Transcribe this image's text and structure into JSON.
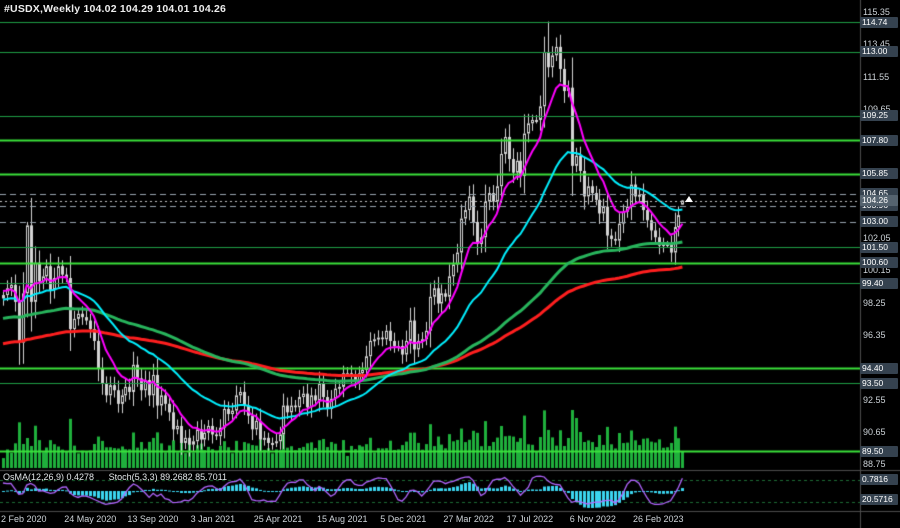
{
  "header": {
    "title_line": "#USDX,Weekly 104.02 104.29 104.01 104.26"
  },
  "indicators": {
    "osma_label": "OsMA(12,26,9) 0.4278",
    "stoch_label": "Stoch(5,3,3) 89.2682 85.7011",
    "panel_tags": [
      "0.7816",
      "20.5716"
    ]
  },
  "chart_data": {
    "type": "candlestick",
    "symbol": "#USDX",
    "timeframe": "Weekly",
    "ohlc": {
      "open": 104.02,
      "high": 104.29,
      "low": 104.01,
      "close": 104.26
    },
    "x_axis": {
      "labels": [
        {
          "text": "2 Feb 2020",
          "week": 0
        },
        {
          "text": "24 May 2020",
          "week": 16
        },
        {
          "text": "13 Sep 2020",
          "week": 32
        },
        {
          "text": "3 Jan 2021",
          "week": 48
        },
        {
          "text": "25 Apr 2021",
          "week": 64
        },
        {
          "text": "15 Aug 2021",
          "week": 80
        },
        {
          "text": "5 Dec 2021",
          "week": 96
        },
        {
          "text": "27 Mar 2022",
          "week": 112
        },
        {
          "text": "17 Jul 2022",
          "week": 128
        },
        {
          "text": "6 Nov 2022",
          "week": 144
        },
        {
          "text": "26 Feb 2023",
          "week": 160
        }
      ]
    },
    "y_axis": {
      "scale_labels": [
        {
          "text": "115.35",
          "price": 115.35
        },
        {
          "text": "113.45",
          "price": 113.45
        },
        {
          "text": "111.55",
          "price": 111.55
        },
        {
          "text": "109.65",
          "price": 109.65
        },
        {
          "text": "107.75",
          "price": 107.75
        },
        {
          "text": "105.85",
          "price": 105.85
        },
        {
          "text": "103.95",
          "price": 103.95
        },
        {
          "text": "102.05",
          "price": 102.05
        },
        {
          "text": "100.15",
          "price": 100.15
        },
        {
          "text": "98.25",
          "price": 98.25
        },
        {
          "text": "96.35",
          "price": 96.35
        },
        {
          "text": "94.45",
          "price": 94.45
        },
        {
          "text": "92.55",
          "price": 92.55
        },
        {
          "text": "90.65",
          "price": 90.65
        },
        {
          "text": "88.75",
          "price": 88.75
        }
      ]
    },
    "candles": {
      "first_open": 98.5,
      "closes": [
        98.7,
        99.1,
        99.3,
        98.3,
        95.9,
        98.8,
        102.8,
        98.3,
        100.6,
        99.5,
        99.8,
        100.4,
        99.0,
        99.7,
        100.4,
        99.9,
        99.7,
        96.7,
        97.3,
        97.6,
        97.4,
        97.2,
        96.7,
        96.0,
        94.4,
        93.5,
        92.8,
        93.4,
        93.1,
        92.3,
        92.8,
        93.3,
        93.0,
        94.6,
        93.8,
        93.1,
        93.7,
        92.8,
        94.0,
        92.2,
        92.8,
        92.3,
        91.8,
        90.8,
        91.0,
        90.0,
        90.3,
        89.9,
        90.1,
        90.8,
        90.2,
        90.6,
        91.0,
        90.5,
        90.4,
        90.9,
        92.0,
        91.7,
        91.9,
        92.8,
        93.0,
        92.2,
        91.6,
        90.8,
        91.3,
        90.2,
        90.3,
        90.0,
        90.0,
        90.1,
        90.5,
        92.2,
        91.8,
        92.2,
        92.1,
        92.7,
        92.9,
        92.1,
        92.8,
        92.5,
        93.5,
        92.7,
        92.0,
        92.6,
        93.2,
        93.3,
        94.1,
        94.1,
        93.9,
        93.6,
        94.1,
        94.3,
        95.1,
        96.0,
        96.1,
        96.2,
        96.1,
        96.6,
        96.0,
        95.7,
        95.7,
        95.2,
        96.0,
        97.2,
        95.5,
        96.0,
        96.1,
        96.6,
        98.6,
        99.1,
        98.2,
        98.8,
        98.6,
        99.8,
        100.5,
        101.2,
        103.2,
        103.7,
        104.5,
        103.0,
        101.7,
        102.1,
        104.2,
        104.7,
        104.2,
        105.1,
        107.0,
        108.0,
        106.7,
        105.9,
        106.6,
        105.7,
        108.2,
        108.8,
        109.0,
        109.0,
        109.8,
        113.0,
        112.1,
        112.8,
        113.3,
        112.0,
        110.7,
        110.9,
        106.3,
        106.9,
        106.0,
        104.5,
        105.1,
        104.7,
        104.3,
        103.5,
        103.9,
        102.2,
        102.0,
        101.9,
        102.9,
        103.6,
        103.9,
        105.2,
        104.5,
        104.6,
        103.7,
        103.1,
        102.5,
        102.1,
        101.6,
        101.7,
        101.7,
        101.2,
        102.7,
        103.4,
        104.26
      ],
      "wick": {
        "base": 0.18,
        "body_mult": 0.3,
        "wave": 0.22
      },
      "overrides": [
        {
          "i": 4,
          "l": 94.6
        },
        {
          "i": 6,
          "h": 103.0
        },
        {
          "i": 47,
          "l": 89.2
        },
        {
          "i": 67,
          "l": 89.5
        },
        {
          "i": 137,
          "h": 113.9
        },
        {
          "i": 138,
          "h": 114.79
        },
        {
          "i": 172,
          "o": 104.02,
          "h": 104.29,
          "l": 104.01
        }
      ]
    },
    "moving_averages": [
      {
        "name": "ma-slowest",
        "period": 150,
        "seed": 95.8,
        "color": "#ff1f1f",
        "width": 3
      },
      {
        "name": "ma-slow",
        "period": 100,
        "seed": 97.3,
        "color": "#28b45c",
        "width": 3
      },
      {
        "name": "ma-medium",
        "period": 30,
        "seed": 98.4,
        "color": "#00f0ff",
        "width": 2
      },
      {
        "name": "ma-fast",
        "period": 9,
        "seed": 99.0,
        "color": "#ff00ff",
        "width": 2
      }
    ],
    "horizontal_levels": [
      {
        "price": 114.74,
        "tag": "114.74",
        "style": "solid",
        "width": 1,
        "color": "#1e9e46"
      },
      {
        "price": 113.0,
        "tag": "113.00",
        "style": "solid",
        "width": 1,
        "color": "#1e9e46"
      },
      {
        "price": 109.25,
        "tag": "109.25",
        "style": "solid",
        "width": 1,
        "color": "#1e9e46"
      },
      {
        "price": 107.8,
        "tag": "107.80",
        "style": "solid",
        "width": 2,
        "color": "#3be13b"
      },
      {
        "price": 105.85,
        "tag": "105.85",
        "style": "solid",
        "width": 2,
        "color": "#3be13b"
      },
      {
        "price": 104.65,
        "tag": "104.65",
        "style": "dash",
        "width": 1,
        "color": "#9aa6b0"
      },
      {
        "price": 103.96,
        "tag": "103.96",
        "style": "dash",
        "width": 1,
        "color": "#9aa6b0"
      },
      {
        "price": 103.0,
        "tag": "103.00",
        "style": "dash",
        "width": 1,
        "color": "#9aa6b0"
      },
      {
        "price": 101.5,
        "tag": "101.50",
        "style": "solid",
        "width": 1,
        "color": "#1e9e46"
      },
      {
        "price": 100.6,
        "tag": "100.60",
        "style": "solid",
        "width": 2,
        "color": "#3be13b"
      },
      {
        "price": 99.4,
        "tag": "99.40",
        "style": "solid",
        "width": 1,
        "color": "#1e9e46"
      },
      {
        "price": 94.4,
        "tag": "94.40",
        "style": "solid",
        "width": 2,
        "color": "#3be13b"
      },
      {
        "price": 93.5,
        "tag": "93.50",
        "style": "solid",
        "width": 1,
        "color": "#1e9e46"
      },
      {
        "price": 89.5,
        "tag": "89.50",
        "style": "solid",
        "width": 2,
        "color": "#3be13b"
      }
    ],
    "current_price": {
      "value": 104.26,
      "tag": "104.26",
      "color": "#c4c4c4"
    },
    "volume": {
      "base": 3,
      "range_mult": 8,
      "trend": 0.05,
      "wave": 6,
      "color": "#1faf3c",
      "spikes": {
        "5": 24,
        "6": 30,
        "7": 22,
        "142": 22,
        "143": 30,
        "144": 58,
        "145": 50,
        "146": 36,
        "147": 26
      }
    },
    "oscillator": {
      "stoch": {
        "period": 5,
        "slowing": 3,
        "signal": 3,
        "levels": [
          20,
          80
        ],
        "color": "#b266ff"
      },
      "osma": {
        "fast": 12,
        "slow": 26,
        "signal": 9,
        "color": "#3bd6f0"
      }
    },
    "marker": {
      "week": 173,
      "price": 104.55,
      "shape": "arrow-up",
      "color": "#ffffff"
    }
  }
}
